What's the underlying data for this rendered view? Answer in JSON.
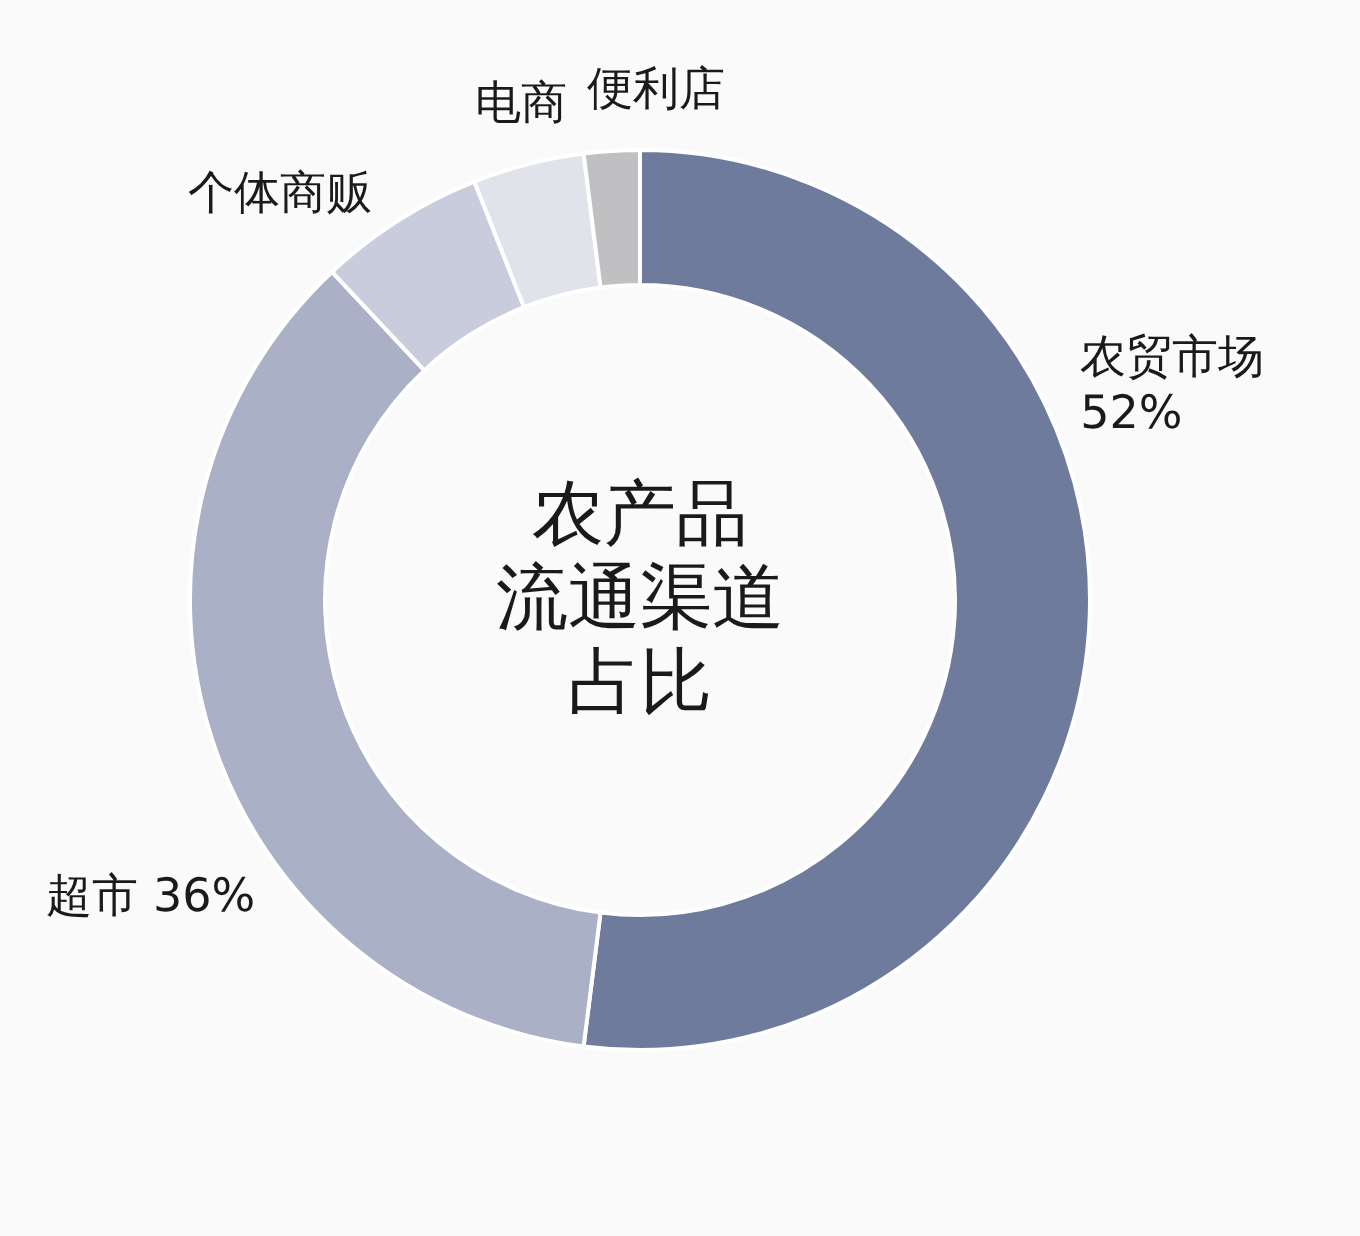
{
  "chart_data": {
    "type": "donut",
    "title": "农产品流通渠道占比",
    "categories": [
      "农贸市场",
      "超市",
      "个体商贩",
      "电商",
      "便利店"
    ],
    "values": [
      52,
      36,
      6,
      4,
      2
    ],
    "value_labels": [
      "52%",
      "36%",
      null,
      null,
      null
    ],
    "colors": [
      "#6e7b9c",
      "#aab0c6",
      "#c9ccdc",
      "#e1e3ea",
      "#c0c0c2"
    ]
  }
}
